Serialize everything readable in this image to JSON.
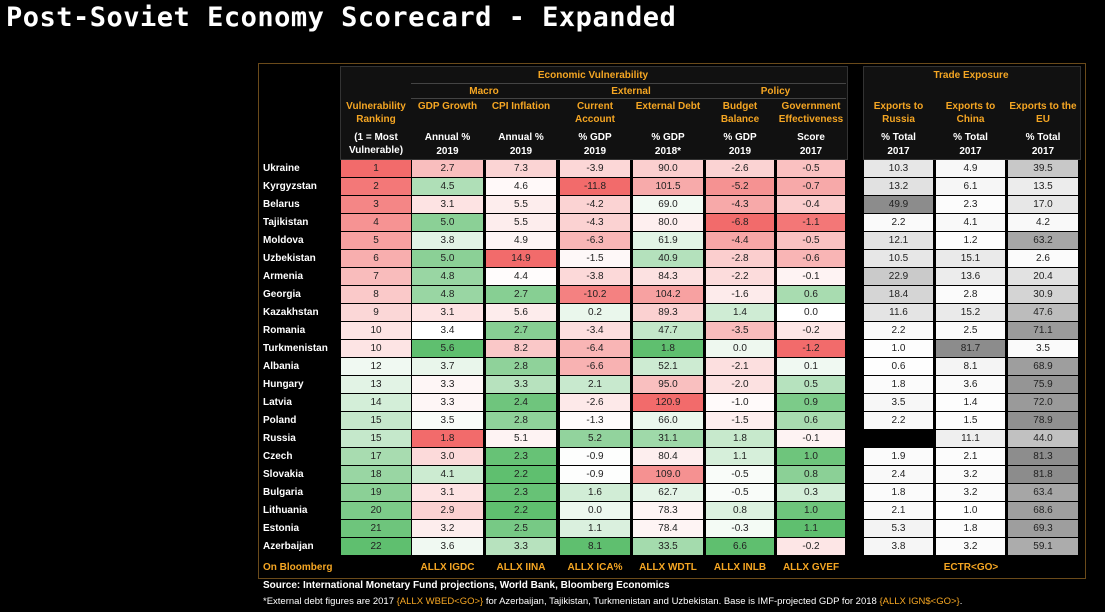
{
  "title": "Post-Soviet Economy Scorecard - Expanded",
  "groups": {
    "econ_vuln": "Economic Vulnerability",
    "macro": "Macro",
    "external": "External",
    "policy": "Policy",
    "trade": "Trade Exposure"
  },
  "columns": [
    {
      "name": "Vulnerability Ranking",
      "unit": "(1 = Most Vulnerable)",
      "year": "",
      "ticker": ""
    },
    {
      "name": "GDP Growth",
      "unit": "Annual %",
      "year": "2019",
      "ticker": "ALLX IGDC"
    },
    {
      "name": "CPI Inflation",
      "unit": "Annual %",
      "year": "2019",
      "ticker": "ALLX IINA"
    },
    {
      "name": "Current Account",
      "unit": "% GDP",
      "year": "2019",
      "ticker": "ALLX ICA%"
    },
    {
      "name": "External Debt",
      "unit": "% GDP",
      "year": "2018*",
      "ticker": "ALLX WDTL"
    },
    {
      "name": "Budget Balance",
      "unit": "% GDP",
      "year": "2019",
      "ticker": "ALLX INLB"
    },
    {
      "name": "Government Effectiveness",
      "unit": "Score",
      "year": "2017",
      "ticker": "ALLX GVEF"
    },
    {
      "name": "Exports to Russia",
      "unit": "% Total",
      "year": "2017",
      "ticker": ""
    },
    {
      "name": "Exports to China",
      "unit": "% Total",
      "year": "2017",
      "ticker": ""
    },
    {
      "name": "Exports to the EU",
      "unit": "% Total",
      "year": "2017",
      "ticker": ""
    }
  ],
  "on_bloomberg_label": "On Bloomberg",
  "trade_ticker": "ECTR<GO>",
  "rows": [
    {
      "country": "Ukraine",
      "rank": "1",
      "gdp": "2.7",
      "cpi": "7.3",
      "ca": "-3.9",
      "debt": "90.0",
      "bb": "-2.6",
      "ge": "-0.5",
      "ru": "10.3",
      "cn": "4.9",
      "eu": "39.5"
    },
    {
      "country": "Kyrgyzstan",
      "rank": "2",
      "gdp": "4.5",
      "cpi": "4.6",
      "ca": "-11.8",
      "debt": "101.5",
      "bb": "-5.2",
      "ge": "-0.7",
      "ru": "13.2",
      "cn": "6.1",
      "eu": "13.5"
    },
    {
      "country": "Belarus",
      "rank": "3",
      "gdp": "3.1",
      "cpi": "5.5",
      "ca": "-4.2",
      "debt": "69.0",
      "bb": "-4.3",
      "ge": "-0.4",
      "ru": "49.9",
      "cn": "2.3",
      "eu": "17.0"
    },
    {
      "country": "Tajikistan",
      "rank": "4",
      "gdp": "5.0",
      "cpi": "5.5",
      "ca": "-4.3",
      "debt": "80.0",
      "bb": "-6.8",
      "ge": "-1.1",
      "ru": "2.2",
      "cn": "4.1",
      "eu": "4.2"
    },
    {
      "country": "Moldova",
      "rank": "5",
      "gdp": "3.8",
      "cpi": "4.9",
      "ca": "-6.3",
      "debt": "61.9",
      "bb": "-4.4",
      "ge": "-0.5",
      "ru": "12.1",
      "cn": "1.2",
      "eu": "63.2"
    },
    {
      "country": "Uzbekistan",
      "rank": "6",
      "gdp": "5.0",
      "cpi": "14.9",
      "ca": "-1.5",
      "debt": "40.9",
      "bb": "-2.8",
      "ge": "-0.6",
      "ru": "10.5",
      "cn": "15.1",
      "eu": "2.6"
    },
    {
      "country": "Armenia",
      "rank": "7",
      "gdp": "4.8",
      "cpi": "4.4",
      "ca": "-3.8",
      "debt": "84.3",
      "bb": "-2.2",
      "ge": "-0.1",
      "ru": "22.9",
      "cn": "13.6",
      "eu": "20.4"
    },
    {
      "country": "Georgia",
      "rank": "8",
      "gdp": "4.8",
      "cpi": "2.7",
      "ca": "-10.2",
      "debt": "104.2",
      "bb": "-1.6",
      "ge": "0.6",
      "ru": "18.4",
      "cn": "2.8",
      "eu": "30.9"
    },
    {
      "country": "Kazakhstan",
      "rank": "9",
      "gdp": "3.1",
      "cpi": "5.6",
      "ca": "0.2",
      "debt": "89.3",
      "bb": "1.4",
      "ge": "0.0",
      "ru": "11.6",
      "cn": "15.2",
      "eu": "47.6"
    },
    {
      "country": "Romania",
      "rank": "10",
      "gdp": "3.4",
      "cpi": "2.7",
      "ca": "-3.4",
      "debt": "47.7",
      "bb": "-3.5",
      "ge": "-0.2",
      "ru": "2.2",
      "cn": "2.5",
      "eu": "71.1"
    },
    {
      "country": "Turkmenistan",
      "rank": "10",
      "gdp": "5.6",
      "cpi": "8.2",
      "ca": "-6.4",
      "debt": "1.8",
      "bb": "0.0",
      "ge": "-1.2",
      "ru": "1.0",
      "cn": "81.7",
      "eu": "3.5"
    },
    {
      "country": "Albania",
      "rank": "12",
      "gdp": "3.7",
      "cpi": "2.8",
      "ca": "-6.6",
      "debt": "52.1",
      "bb": "-2.1",
      "ge": "0.1",
      "ru": "0.6",
      "cn": "8.1",
      "eu": "68.9"
    },
    {
      "country": "Hungary",
      "rank": "13",
      "gdp": "3.3",
      "cpi": "3.3",
      "ca": "2.1",
      "debt": "95.0",
      "bb": "-2.0",
      "ge": "0.5",
      "ru": "1.8",
      "cn": "3.6",
      "eu": "75.9"
    },
    {
      "country": "Latvia",
      "rank": "14",
      "gdp": "3.3",
      "cpi": "2.4",
      "ca": "-2.6",
      "debt": "120.9",
      "bb": "-1.0",
      "ge": "0.9",
      "ru": "3.5",
      "cn": "1.4",
      "eu": "72.0"
    },
    {
      "country": "Poland",
      "rank": "15",
      "gdp": "3.5",
      "cpi": "2.8",
      "ca": "-1.3",
      "debt": "66.0",
      "bb": "-1.5",
      "ge": "0.6",
      "ru": "2.2",
      "cn": "1.5",
      "eu": "78.9"
    },
    {
      "country": "Russia",
      "rank": "15",
      "gdp": "1.8",
      "cpi": "5.1",
      "ca": "5.2",
      "debt": "31.1",
      "bb": "1.8",
      "ge": "-0.1",
      "ru": "",
      "cn": "11.1",
      "eu": "44.0"
    },
    {
      "country": "Czech",
      "rank": "17",
      "gdp": "3.0",
      "cpi": "2.3",
      "ca": "-0.9",
      "debt": "80.4",
      "bb": "1.1",
      "ge": "1.0",
      "ru": "1.9",
      "cn": "2.1",
      "eu": "81.3"
    },
    {
      "country": "Slovakia",
      "rank": "18",
      "gdp": "4.1",
      "cpi": "2.2",
      "ca": "-0.9",
      "debt": "109.0",
      "bb": "-0.5",
      "ge": "0.8",
      "ru": "2.4",
      "cn": "3.2",
      "eu": "81.8"
    },
    {
      "country": "Bulgaria",
      "rank": "19",
      "gdp": "3.1",
      "cpi": "2.3",
      "ca": "1.6",
      "debt": "62.7",
      "bb": "-0.5",
      "ge": "0.3",
      "ru": "1.8",
      "cn": "3.2",
      "eu": "63.4"
    },
    {
      "country": "Lithuania",
      "rank": "20",
      "gdp": "2.9",
      "cpi": "2.2",
      "ca": "0.0",
      "debt": "78.3",
      "bb": "0.8",
      "ge": "1.0",
      "ru": "2.1",
      "cn": "1.0",
      "eu": "68.6"
    },
    {
      "country": "Estonia",
      "rank": "21",
      "gdp": "3.2",
      "cpi": "2.5",
      "ca": "1.1",
      "debt": "78.4",
      "bb": "-0.3",
      "ge": "1.1",
      "ru": "5.3",
      "cn": "1.8",
      "eu": "69.3"
    },
    {
      "country": "Azerbaijan",
      "rank": "22",
      "gdp": "3.6",
      "cpi": "3.3",
      "ca": "8.1",
      "debt": "33.5",
      "bb": "6.6",
      "ge": "-0.2",
      "ru": "3.8",
      "cn": "3.2",
      "eu": "59.1"
    }
  ],
  "source": "Source: International Monetary Fund projections, World Bank, Bloomberg Economics",
  "note": {
    "p1": "*External debt figures are 2017 ",
    "t1": "{ALLX WBED<GO>}",
    "p2": " for Azerbaijan, Tajikistan, Turkmenistan and Uzbekistan. Base is IMF-projected GDP for 2018 ",
    "t2": "{ALLX IGN$<GO>}",
    "p3": "."
  },
  "colors": {
    "accent_orange": "#f5a623",
    "red_strong": "#f26b6b",
    "green_strong": "#5fbf6f",
    "grey_strong": "#8c8c8c"
  }
}
